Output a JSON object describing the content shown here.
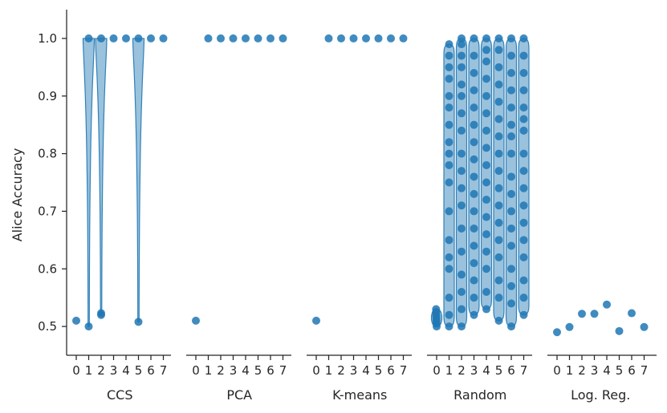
{
  "chart_data": {
    "type": "scatter",
    "ylabel": "Alice Accuracy",
    "ylim": [
      0.45,
      1.05
    ],
    "yticks": [
      "0.5",
      "0.6",
      "0.7",
      "0.8",
      "0.9",
      "1.0"
    ],
    "x_tick_labels": [
      "0",
      "1",
      "2",
      "3",
      "4",
      "5",
      "6",
      "7"
    ],
    "colors": {
      "point": "#1f77b4",
      "violin": "#1f77b4"
    },
    "grid": false,
    "panels": [
      {
        "name": "CCS",
        "violin": true,
        "points": [
          [
            0.51
          ],
          [
            0.5,
            1.0
          ],
          [
            0.52,
            0.523,
            1.0
          ],
          [
            1.0
          ],
          [
            1.0
          ],
          [
            0.508,
            1.0
          ],
          [
            1.0
          ],
          [
            1.0
          ]
        ]
      },
      {
        "name": "PCA",
        "violin": false,
        "points": [
          [
            0.51
          ],
          [
            1.0
          ],
          [
            1.0
          ],
          [
            1.0
          ],
          [
            1.0
          ],
          [
            1.0
          ],
          [
            1.0
          ],
          [
            1.0
          ]
        ]
      },
      {
        "name": "K-means",
        "violin": false,
        "points": [
          [
            0.51
          ],
          [
            1.0
          ],
          [
            1.0
          ],
          [
            1.0
          ],
          [
            1.0
          ],
          [
            1.0
          ],
          [
            1.0
          ],
          [
            1.0
          ]
        ]
      },
      {
        "name": "Random",
        "violin": true,
        "points": [
          [
            0.5,
            0.505,
            0.51,
            0.515,
            0.52,
            0.525,
            0.53
          ],
          [
            0.5,
            0.52,
            0.55,
            0.6,
            0.62,
            0.65,
            0.7,
            0.75,
            0.78,
            0.8,
            0.82,
            0.85,
            0.88,
            0.9,
            0.93,
            0.95,
            0.97,
            0.99
          ],
          [
            0.5,
            0.53,
            0.56,
            0.59,
            0.63,
            0.67,
            0.71,
            0.74,
            0.77,
            0.8,
            0.84,
            0.87,
            0.9,
            0.92,
            0.95,
            0.97,
            0.99,
            1.0
          ],
          [
            0.52,
            0.55,
            0.58,
            0.61,
            0.64,
            0.67,
            0.7,
            0.73,
            0.76,
            0.79,
            0.82,
            0.85,
            0.88,
            0.91,
            0.94,
            0.97,
            1.0
          ],
          [
            0.53,
            0.56,
            0.6,
            0.63,
            0.66,
            0.69,
            0.72,
            0.75,
            0.78,
            0.81,
            0.84,
            0.87,
            0.9,
            0.93,
            0.96,
            0.98,
            1.0
          ],
          [
            0.51,
            0.55,
            0.58,
            0.62,
            0.65,
            0.68,
            0.71,
            0.74,
            0.77,
            0.8,
            0.83,
            0.86,
            0.89,
            0.92,
            0.95,
            0.98,
            1.0
          ],
          [
            0.5,
            0.54,
            0.57,
            0.6,
            0.64,
            0.67,
            0.7,
            0.73,
            0.76,
            0.8,
            0.83,
            0.85,
            0.88,
            0.91,
            0.94,
            0.97,
            1.0
          ],
          [
            0.52,
            0.55,
            0.58,
            0.62,
            0.65,
            0.68,
            0.71,
            0.74,
            0.77,
            0.8,
            0.84,
            0.86,
            0.88,
            0.91,
            0.94,
            0.97,
            1.0
          ]
        ]
      },
      {
        "name": "Log. Reg.",
        "violin": false,
        "points": [
          [
            0.49
          ],
          [
            0.499
          ],
          [
            0.522
          ],
          [
            0.522
          ],
          [
            0.538
          ],
          [
            0.492
          ],
          [
            0.523
          ],
          [
            0.499
          ]
        ]
      }
    ]
  }
}
